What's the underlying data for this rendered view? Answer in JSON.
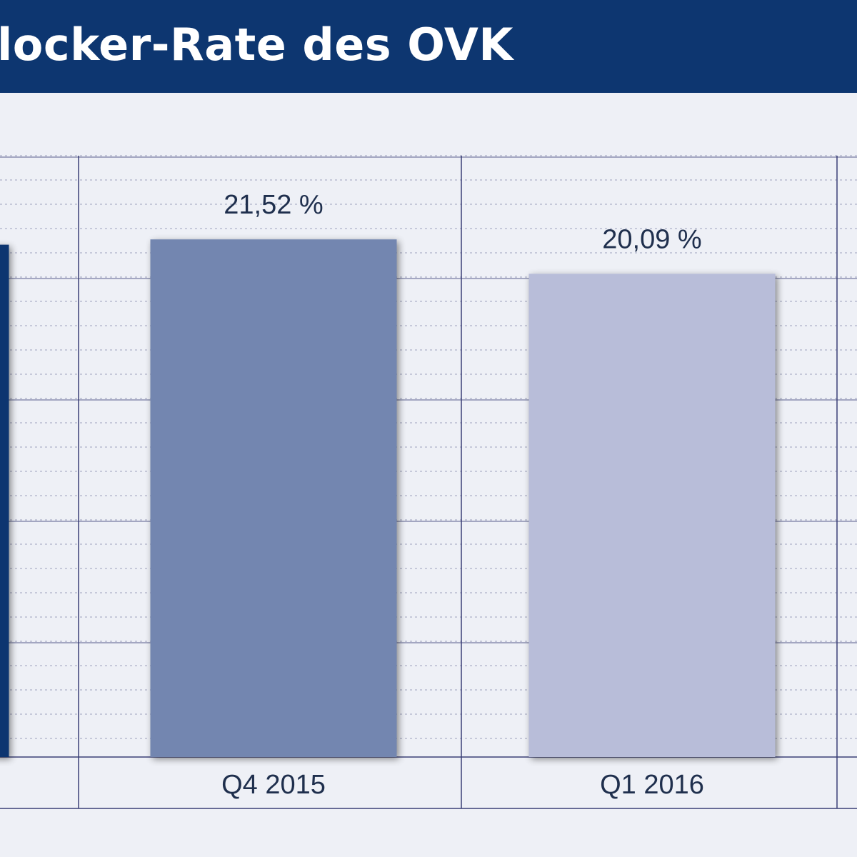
{
  "title": "locker-Rate des OVK",
  "colors": {
    "title_bg": "#0d3670",
    "plot_bg": "#eef0f6",
    "grid_major": "#3a3f76",
    "grid_minor": "#b9bcd0",
    "text": "#1f2f4d"
  },
  "chart_data": {
    "type": "bar",
    "categories": [
      "",
      "Q4 2015",
      "Q1 2016"
    ],
    "series": [
      {
        "values": [
          21.3,
          21.52,
          20.09
        ],
        "labels": [
          "",
          "21,52 %",
          "20,09 %"
        ],
        "colors": [
          "#0d3670",
          "#7386b0",
          "#b8bdd9"
        ]
      }
    ],
    "ylim": [
      0,
      25
    ],
    "grid": true,
    "legend": "none"
  }
}
